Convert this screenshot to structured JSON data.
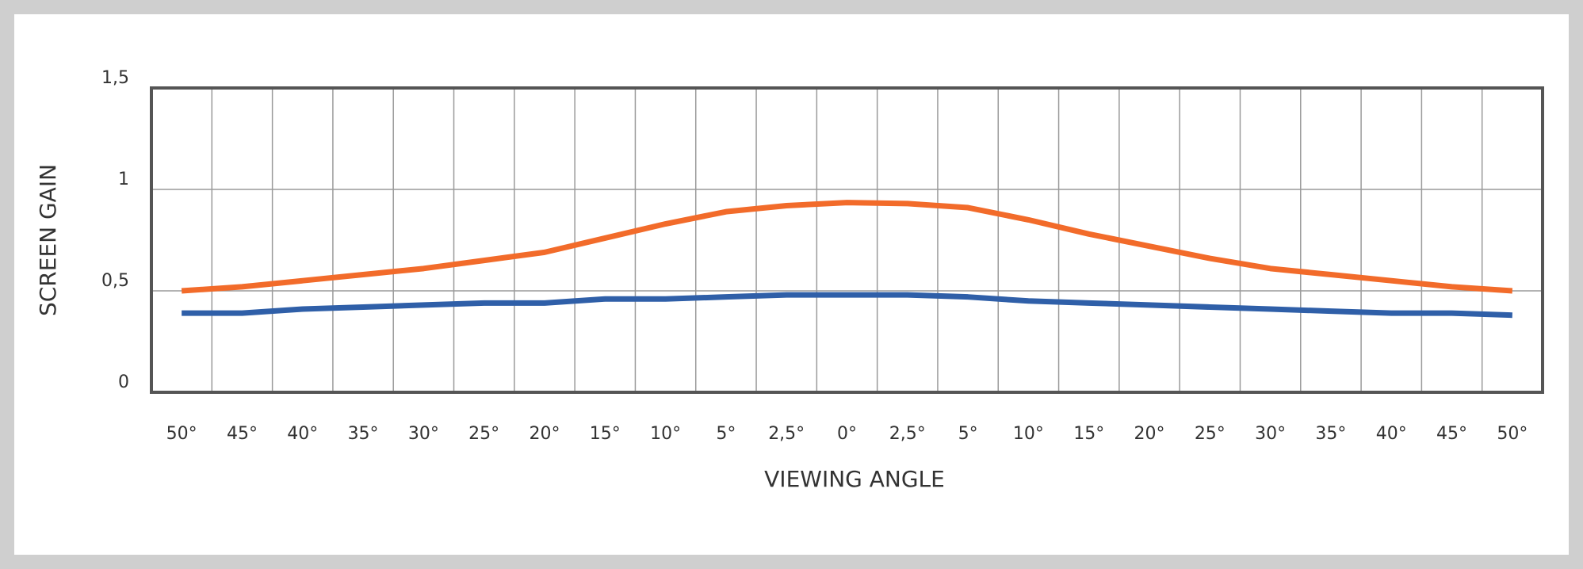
{
  "chart_data": {
    "type": "line",
    "y_label": "SCREEN GAIN",
    "x_label": "VIEWING ANGLE",
    "categories": [
      "50°",
      "45°",
      "40°",
      "35°",
      "30°",
      "25°",
      "20°",
      "15°",
      "10°",
      "5°",
      "2,5°",
      "0°",
      "2,5°",
      "5°",
      "10°",
      "15°",
      "20°",
      "25°",
      "30°",
      "35°",
      "40°",
      "45°",
      "50°"
    ],
    "series": [
      {
        "color": "#f26b2a",
        "values": [
          0.5,
          0.52,
          0.55,
          0.58,
          0.61,
          0.65,
          0.69,
          0.76,
          0.83,
          0.89,
          0.92,
          0.935,
          0.93,
          0.91,
          0.85,
          0.78,
          0.72,
          0.66,
          0.61,
          0.58,
          0.55,
          0.52,
          0.5
        ]
      },
      {
        "color": "#2f5fa8",
        "values": [
          0.39,
          0.39,
          0.41,
          0.42,
          0.43,
          0.44,
          0.44,
          0.46,
          0.46,
          0.47,
          0.48,
          0.48,
          0.48,
          0.47,
          0.45,
          0.44,
          0.43,
          0.42,
          0.41,
          0.4,
          0.39,
          0.39,
          0.38
        ]
      }
    ],
    "ylim": [
      0,
      1.5
    ],
    "yticks": [
      0,
      {
        "value": 0.5,
        "label": "0,5"
      },
      1,
      {
        "value": 1.5,
        "label": "1,5"
      }
    ],
    "grid": true
  }
}
